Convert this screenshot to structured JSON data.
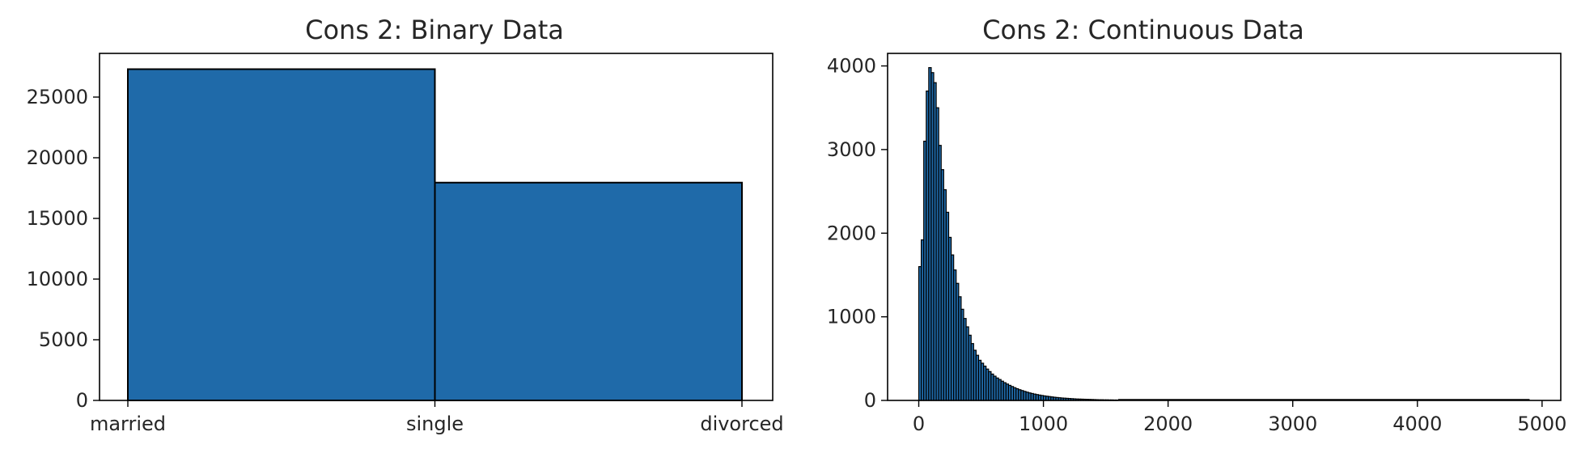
{
  "chart_data": [
    {
      "type": "bar",
      "title": "Cons 2: Binary Data",
      "xlabel": "",
      "ylabel": "",
      "bins": [
        {
          "from": "married",
          "to": "single",
          "value": 27300
        },
        {
          "from": "single",
          "to": "divorced",
          "value": 17950
        }
      ],
      "x_ticks": [
        "married",
        "single",
        "divorced"
      ],
      "ylim": [
        0,
        28600
      ],
      "y_ticks": [
        0,
        5000,
        10000,
        15000,
        20000,
        25000
      ],
      "bar_color": "#1f6aa9",
      "edge_color": "#000000",
      "grid": false
    },
    {
      "type": "histogram",
      "title": "Cons 2: Continuous Data",
      "xlabel": "",
      "ylabel": "",
      "xlim": [
        -250,
        5150
      ],
      "ylim": [
        0,
        4150
      ],
      "x_ticks": [
        0,
        1000,
        2000,
        3000,
        4000,
        5000
      ],
      "y_ticks": [
        0,
        1000,
        2000,
        3000,
        4000
      ],
      "bin_width": 20,
      "bin_start": 0,
      "counts": [
        1600,
        1920,
        3100,
        3700,
        3980,
        3920,
        3800,
        3500,
        3050,
        2760,
        2520,
        2250,
        1950,
        1740,
        1560,
        1400,
        1240,
        1090,
        980,
        880,
        780,
        680,
        600,
        540,
        480,
        445,
        410,
        375,
        345,
        315,
        290,
        268,
        250,
        230,
        212,
        196,
        180,
        166,
        152,
        140,
        128,
        118,
        108,
        99,
        90,
        83,
        76,
        70,
        64,
        59,
        54,
        50,
        46,
        42,
        38,
        35,
        32,
        29,
        27,
        25,
        23,
        21,
        19,
        17,
        16,
        15,
        14,
        13,
        12,
        11,
        10,
        9,
        8,
        8,
        7,
        7,
        6,
        6,
        5,
        5
      ],
      "tail_max_x": 4900,
      "bar_color": "#1f6aa9",
      "edge_color": "#000000",
      "grid": false
    }
  ]
}
